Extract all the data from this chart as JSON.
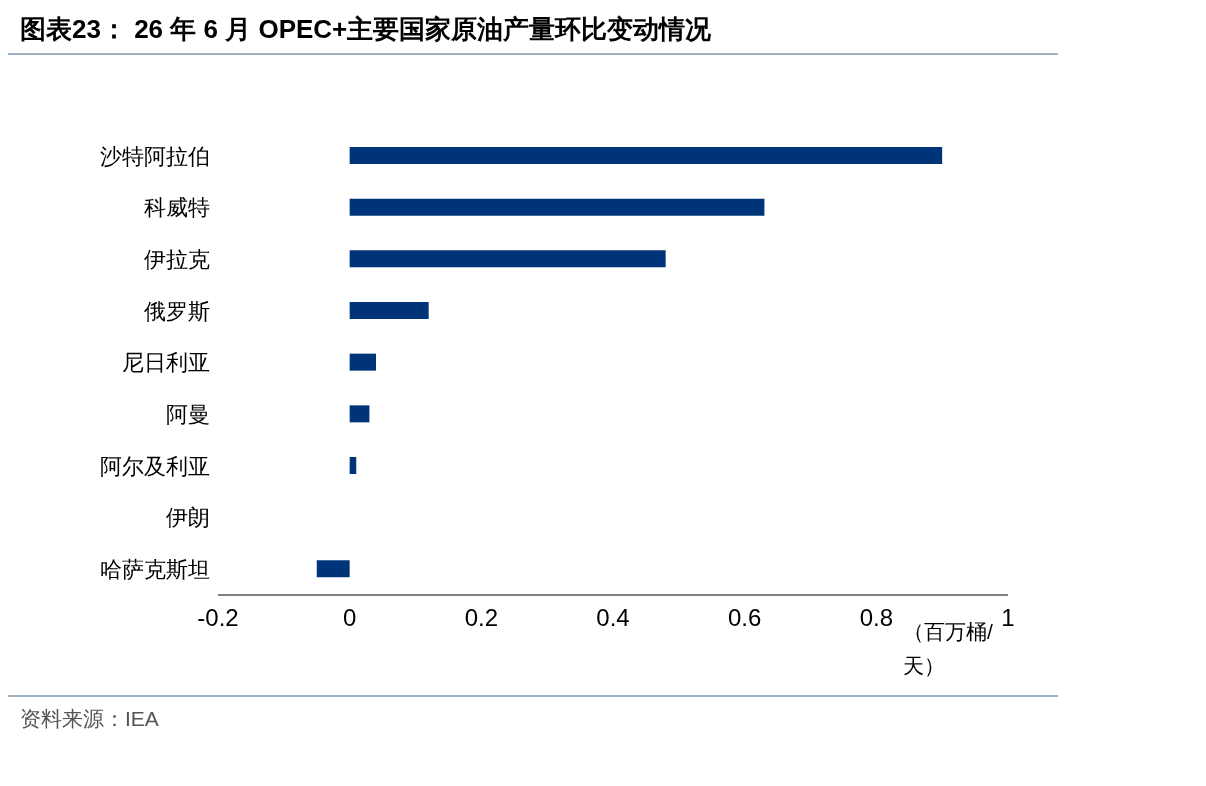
{
  "chart_data": {
    "type": "bar",
    "orientation": "horizontal",
    "title": "图表23： 26 年 6 月 OPEC+主要国家原油产量环比变动情况",
    "xlabel": "（百万桶/天）",
    "categories": [
      "沙特阿拉伯",
      "科威特",
      "伊拉克",
      "俄罗斯",
      "尼日利亚",
      "阿曼",
      "阿尔及利亚",
      "伊朗",
      "哈萨克斯坦"
    ],
    "series": [
      {
        "color": "#003478",
        "values": [
          0.9,
          0.63,
          0.48,
          0.12,
          0.04,
          0.03,
          0.01,
          0,
          -0.05
        ]
      }
    ],
    "xlim": [
      -0.2,
      1
    ],
    "xticks": [
      -0.2,
      0,
      0.2,
      0.4,
      0.6,
      0.8,
      1
    ],
    "grid": false,
    "legend": false,
    "annotations": [
      "资料来源：IEA"
    ]
  }
}
